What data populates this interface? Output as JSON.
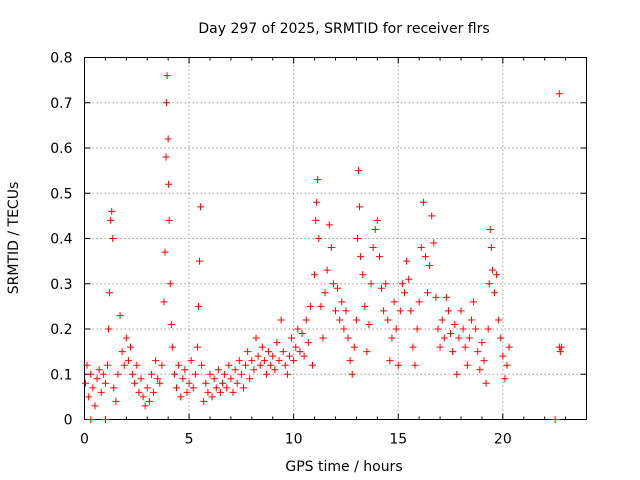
{
  "chart_data": {
    "type": "scatter",
    "title": "Day 297 of 2025, SRMTID for receiver flrs",
    "xlabel": "GPS time / hours",
    "ylabel": "SRMTID / TECUs",
    "xlim": [
      0,
      24
    ],
    "ylim": [
      0,
      0.8
    ],
    "x_tick_labels": [
      "0",
      "5",
      "10",
      "15",
      "20"
    ],
    "y_tick_labels": [
      "0",
      "0.1",
      "0.2",
      "0.3",
      "0.4",
      "0.5",
      "0.6",
      "0.7",
      "0.8"
    ],
    "grid": true,
    "marker": "plus",
    "color": "#ff0000",
    "legend": "none",
    "series": [
      {
        "name": "SRMTID",
        "points": [
          [
            0.05,
            0.08
          ],
          [
            0.12,
            0.12
          ],
          [
            0.2,
            0.05
          ],
          [
            0.3,
            0.1
          ],
          [
            0.4,
            0.07
          ],
          [
            0.5,
            0.03
          ],
          [
            0.6,
            0.09
          ],
          [
            0.7,
            0.11
          ],
          [
            0.8,
            0.06
          ],
          [
            0.9,
            0.1
          ],
          [
            1.0,
            0.08
          ],
          [
            1.1,
            0.12
          ],
          [
            1.15,
            0.2
          ],
          [
            1.2,
            0.28
          ],
          [
            1.25,
            0.44
          ],
          [
            1.3,
            0.46
          ],
          [
            1.35,
            0.4
          ],
          [
            1.4,
            0.07
          ],
          [
            1.5,
            0.04
          ],
          [
            1.6,
            0.1
          ],
          [
            1.7,
            0.23
          ],
          [
            1.8,
            0.15
          ],
          [
            1.9,
            0.12
          ],
          [
            2.0,
            0.18
          ],
          [
            2.1,
            0.13
          ],
          [
            2.2,
            0.16
          ],
          [
            2.3,
            0.1
          ],
          [
            2.4,
            0.08
          ],
          [
            2.5,
            0.12
          ],
          [
            2.6,
            0.06
          ],
          [
            2.7,
            0.09
          ],
          [
            2.8,
            0.05
          ],
          [
            2.9,
            0.03
          ],
          [
            3.0,
            0.07
          ],
          [
            3.1,
            0.04
          ],
          [
            3.2,
            0.1
          ],
          [
            3.3,
            0.06
          ],
          [
            3.4,
            0.13
          ],
          [
            3.5,
            0.09
          ],
          [
            3.6,
            0.08
          ],
          [
            3.7,
            0.12
          ],
          [
            3.8,
            0.26
          ],
          [
            3.85,
            0.37
          ],
          [
            3.9,
            0.58
          ],
          [
            3.92,
            0.7
          ],
          [
            3.95,
            0.76
          ],
          [
            4.0,
            0.62
          ],
          [
            4.02,
            0.52
          ],
          [
            4.05,
            0.44
          ],
          [
            4.1,
            0.3
          ],
          [
            4.15,
            0.21
          ],
          [
            4.2,
            0.16
          ],
          [
            4.3,
            0.1
          ],
          [
            4.4,
            0.07
          ],
          [
            4.5,
            0.12
          ],
          [
            4.6,
            0.05
          ],
          [
            4.7,
            0.09
          ],
          [
            4.8,
            0.11
          ],
          [
            4.9,
            0.06
          ],
          [
            5.0,
            0.08
          ],
          [
            5.1,
            0.13
          ],
          [
            5.2,
            0.07
          ],
          [
            5.3,
            0.1
          ],
          [
            5.4,
            0.16
          ],
          [
            5.45,
            0.25
          ],
          [
            5.5,
            0.35
          ],
          [
            5.55,
            0.47
          ],
          [
            5.6,
            0.12
          ],
          [
            5.7,
            0.04
          ],
          [
            5.8,
            0.08
          ],
          [
            5.9,
            0.06
          ],
          [
            6.0,
            0.1
          ],
          [
            6.1,
            0.05
          ],
          [
            6.2,
            0.09
          ],
          [
            6.3,
            0.07
          ],
          [
            6.4,
            0.11
          ],
          [
            6.5,
            0.06
          ],
          [
            6.6,
            0.08
          ],
          [
            6.7,
            0.1
          ],
          [
            6.8,
            0.07
          ],
          [
            6.9,
            0.12
          ],
          [
            7.0,
            0.09
          ],
          [
            7.1,
            0.06
          ],
          [
            7.2,
            0.11
          ],
          [
            7.3,
            0.08
          ],
          [
            7.4,
            0.13
          ],
          [
            7.5,
            0.1
          ],
          [
            7.6,
            0.07
          ],
          [
            7.7,
            0.12
          ],
          [
            7.8,
            0.15
          ],
          [
            7.9,
            0.09
          ],
          [
            8.0,
            0.13
          ],
          [
            8.1,
            0.11
          ],
          [
            8.2,
            0.18
          ],
          [
            8.3,
            0.14
          ],
          [
            8.4,
            0.12
          ],
          [
            8.5,
            0.16
          ],
          [
            8.6,
            0.13
          ],
          [
            8.7,
            0.1
          ],
          [
            8.8,
            0.15
          ],
          [
            8.9,
            0.12
          ],
          [
            9.0,
            0.14
          ],
          [
            9.1,
            0.11
          ],
          [
            9.2,
            0.17
          ],
          [
            9.3,
            0.13
          ],
          [
            9.4,
            0.22
          ],
          [
            9.5,
            0.15
          ],
          [
            9.6,
            0.12
          ],
          [
            9.7,
            0.1
          ],
          [
            9.8,
            0.14
          ],
          [
            9.9,
            0.18
          ],
          [
            10.0,
            0.13
          ],
          [
            10.1,
            0.16
          ],
          [
            10.2,
            0.2
          ],
          [
            10.3,
            0.15
          ],
          [
            10.4,
            0.19
          ],
          [
            10.5,
            0.14
          ],
          [
            10.6,
            0.22
          ],
          [
            10.7,
            0.17
          ],
          [
            10.8,
            0.25
          ],
          [
            10.9,
            0.12
          ],
          [
            11.0,
            0.32
          ],
          [
            11.05,
            0.44
          ],
          [
            11.1,
            0.48
          ],
          [
            11.15,
            0.53
          ],
          [
            11.2,
            0.4
          ],
          [
            11.3,
            0.25
          ],
          [
            11.4,
            0.18
          ],
          [
            11.5,
            0.28
          ],
          [
            11.6,
            0.33
          ],
          [
            11.7,
            0.43
          ],
          [
            11.8,
            0.38
          ],
          [
            11.9,
            0.3
          ],
          [
            12.0,
            0.24
          ],
          [
            12.1,
            0.29
          ],
          [
            12.2,
            0.22
          ],
          [
            12.3,
            0.26
          ],
          [
            12.4,
            0.2
          ],
          [
            12.5,
            0.24
          ],
          [
            12.6,
            0.18
          ],
          [
            12.7,
            0.13
          ],
          [
            12.8,
            0.1
          ],
          [
            12.9,
            0.16
          ],
          [
            13.0,
            0.22
          ],
          [
            13.05,
            0.4
          ],
          [
            13.1,
            0.55
          ],
          [
            13.15,
            0.47
          ],
          [
            13.2,
            0.36
          ],
          [
            13.3,
            0.32
          ],
          [
            13.4,
            0.25
          ],
          [
            13.5,
            0.15
          ],
          [
            13.6,
            0.21
          ],
          [
            13.7,
            0.3
          ],
          [
            13.8,
            0.38
          ],
          [
            13.9,
            0.42
          ],
          [
            14.0,
            0.44
          ],
          [
            14.1,
            0.36
          ],
          [
            14.2,
            0.29
          ],
          [
            14.3,
            0.24
          ],
          [
            14.4,
            0.3
          ],
          [
            14.5,
            0.22
          ],
          [
            14.6,
            0.13
          ],
          [
            14.7,
            0.18
          ],
          [
            14.8,
            0.26
          ],
          [
            14.9,
            0.2
          ],
          [
            15.0,
            0.12
          ],
          [
            15.1,
            0.24
          ],
          [
            15.2,
            0.3
          ],
          [
            15.3,
            0.28
          ],
          [
            15.4,
            0.35
          ],
          [
            15.5,
            0.31
          ],
          [
            15.6,
            0.24
          ],
          [
            15.7,
            0.16
          ],
          [
            15.8,
            0.12
          ],
          [
            15.9,
            0.2
          ],
          [
            16.0,
            0.26
          ],
          [
            16.1,
            0.38
          ],
          [
            16.2,
            0.48
          ],
          [
            16.3,
            0.36
          ],
          [
            16.4,
            0.28
          ],
          [
            16.5,
            0.34
          ],
          [
            16.6,
            0.45
          ],
          [
            16.7,
            0.39
          ],
          [
            16.8,
            0.27
          ],
          [
            16.9,
            0.2
          ],
          [
            17.0,
            0.16
          ],
          [
            17.1,
            0.22
          ],
          [
            17.2,
            0.18
          ],
          [
            17.3,
            0.27
          ],
          [
            17.4,
            0.24
          ],
          [
            17.5,
            0.19
          ],
          [
            17.6,
            0.15
          ],
          [
            17.7,
            0.21
          ],
          [
            17.8,
            0.1
          ],
          [
            17.9,
            0.18
          ],
          [
            18.0,
            0.24
          ],
          [
            18.1,
            0.2
          ],
          [
            18.2,
            0.16
          ],
          [
            18.3,
            0.12
          ],
          [
            18.4,
            0.18
          ],
          [
            18.5,
            0.22
          ],
          [
            18.6,
            0.26
          ],
          [
            18.7,
            0.2
          ],
          [
            18.8,
            0.15
          ],
          [
            18.9,
            0.11
          ],
          [
            19.0,
            0.17
          ],
          [
            19.1,
            0.13
          ],
          [
            19.2,
            0.08
          ],
          [
            19.3,
            0.2
          ],
          [
            19.35,
            0.3
          ],
          [
            19.4,
            0.42
          ],
          [
            19.45,
            0.38
          ],
          [
            19.5,
            0.33
          ],
          [
            19.6,
            0.28
          ],
          [
            19.7,
            0.32
          ],
          [
            19.8,
            0.22
          ],
          [
            19.9,
            0.18
          ],
          [
            20.0,
            0.14
          ],
          [
            20.1,
            0.09
          ],
          [
            20.2,
            0.12
          ],
          [
            20.3,
            0.16
          ],
          [
            22.7,
            0.72
          ],
          [
            22.7,
            0.16
          ],
          [
            22.8,
            0.16
          ],
          [
            22.75,
            0.15
          ],
          [
            0.3,
            0.0
          ],
          [
            1.0,
            0.0
          ],
          [
            22.5,
            0.0
          ]
        ]
      }
    ]
  }
}
